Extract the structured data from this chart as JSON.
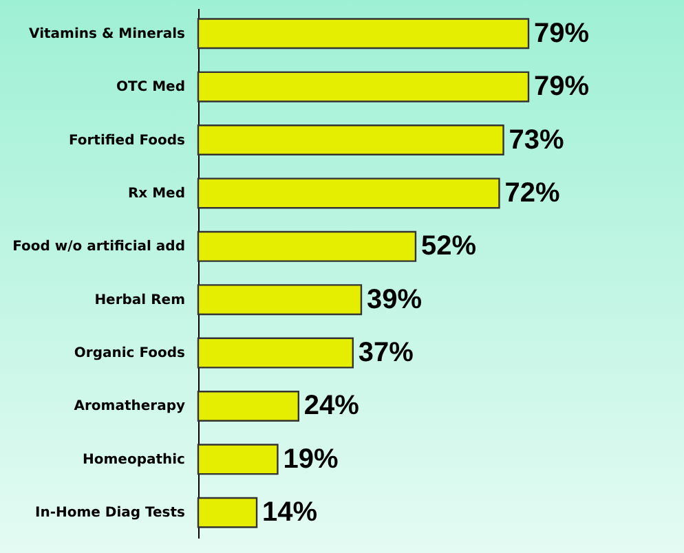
{
  "chart_data": {
    "type": "bar",
    "orientation": "horizontal",
    "categories": [
      "Vitamins & Minerals",
      "OTC Med",
      "Fortified Foods",
      "Rx Med",
      "Food w/o artificial add",
      "Herbal Rem",
      "Organic Foods",
      "Aromatherapy",
      "Homeopathic",
      "In-Home Diag Tests"
    ],
    "values": [
      79,
      79,
      73,
      72,
      52,
      39,
      37,
      24,
      19,
      14
    ],
    "value_labels": [
      "79%",
      "79%",
      "73%",
      "72%",
      "52%",
      "39%",
      "37%",
      "24%",
      "19%",
      "14%"
    ],
    "color": "#e6ee00"
  }
}
